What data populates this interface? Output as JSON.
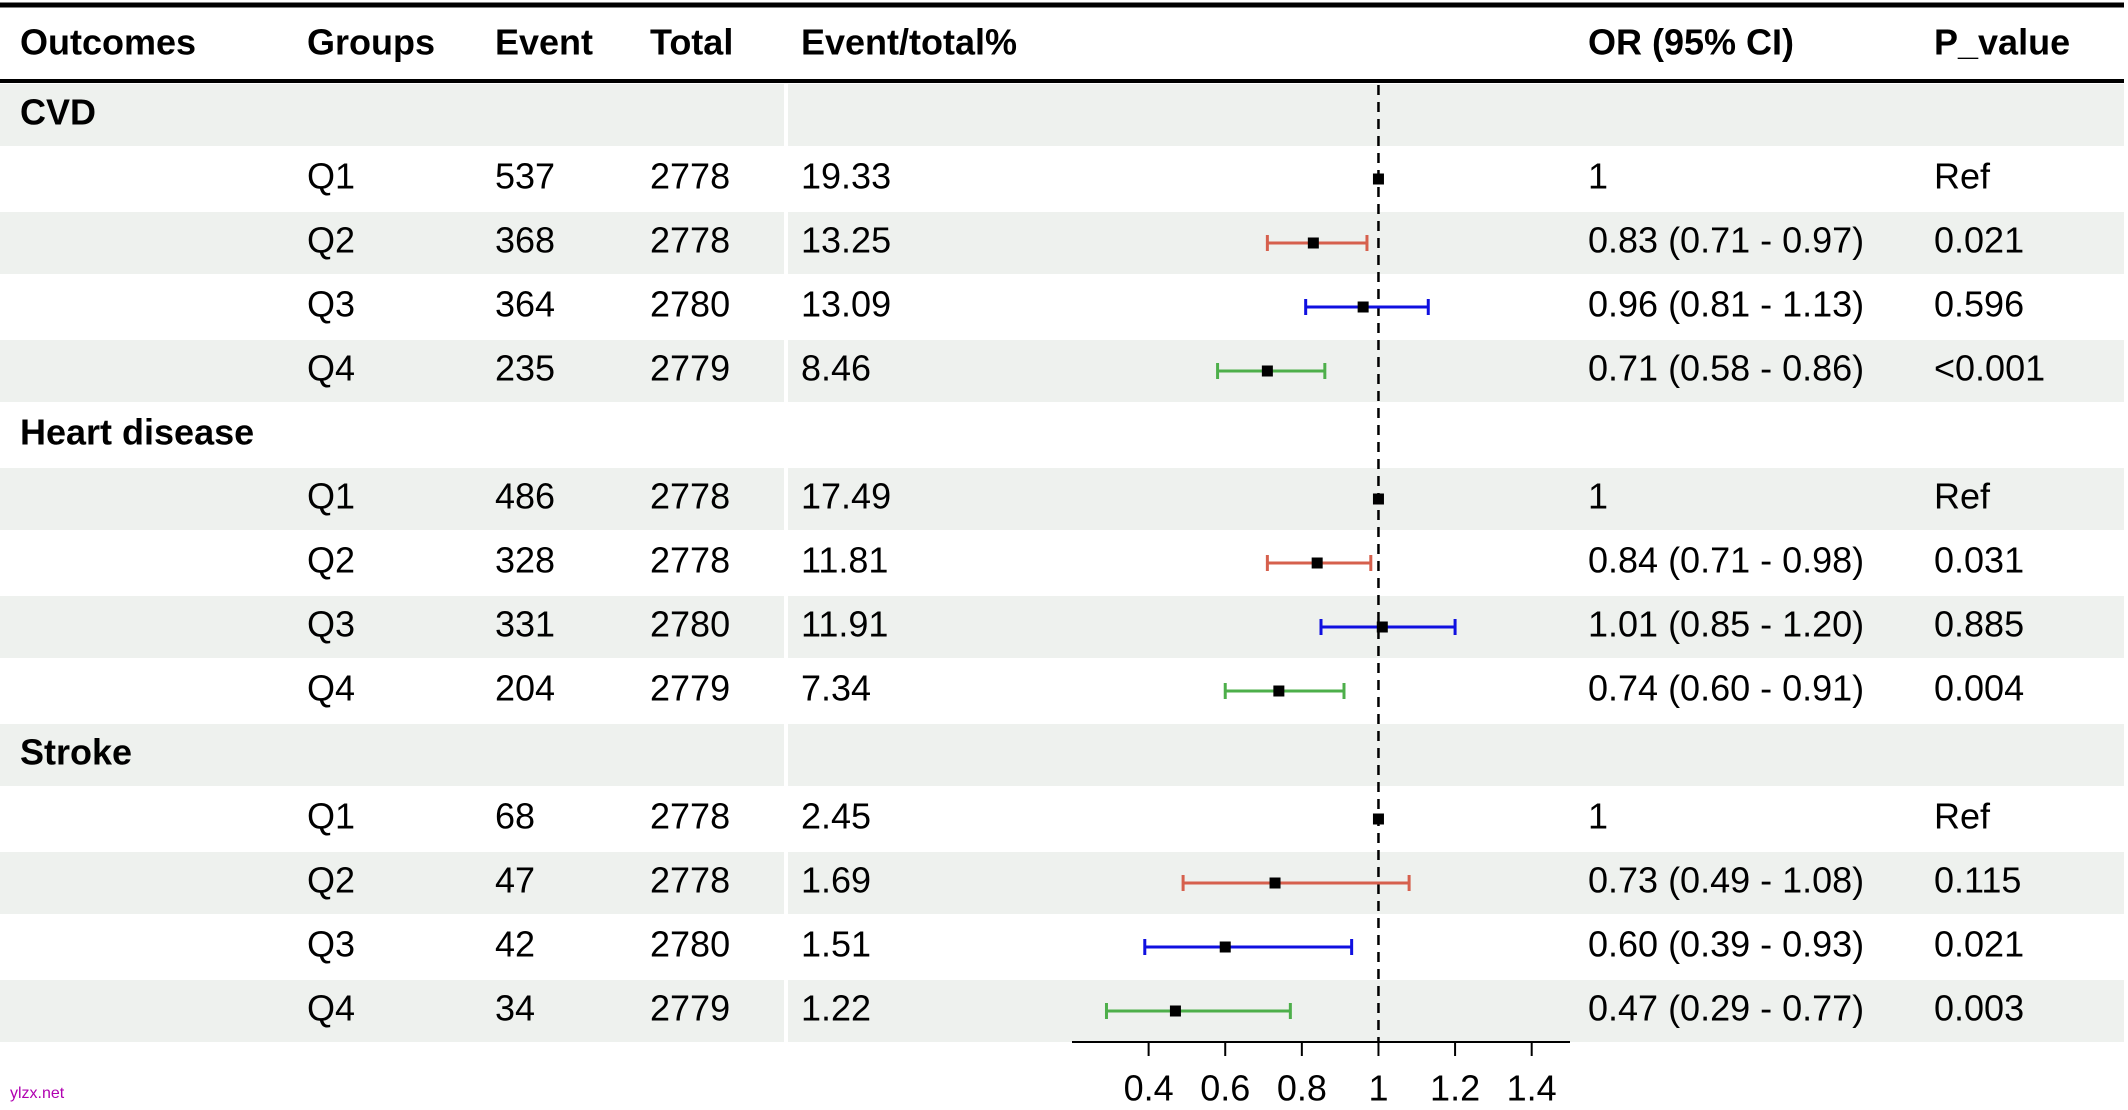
{
  "chart_data": {
    "type": "forest",
    "columns": [
      "Outcomes",
      "Groups",
      "Event",
      "Total",
      "Event/total%",
      "OR (95% CI)",
      "P_value"
    ],
    "sections": [
      {
        "name": "CVD",
        "rows": [
          {
            "group": "Q1",
            "event": 537,
            "total": 2778,
            "pct": 19.33,
            "or": 1,
            "or_label": "1",
            "p": "Ref",
            "color": "#000000"
          },
          {
            "group": "Q2",
            "event": 368,
            "total": 2778,
            "pct": 13.25,
            "or": 0.83,
            "lower": 0.71,
            "upper": 0.97,
            "or_label": "0.83 (0.71 - 0.97)",
            "p": "0.021",
            "color": "#d6604d"
          },
          {
            "group": "Q3",
            "event": 364,
            "total": 2780,
            "pct": 13.09,
            "or": 0.96,
            "lower": 0.81,
            "upper": 1.13,
            "or_label": "0.96 (0.81 - 1.13)",
            "p": "0.596",
            "color": "#1010e0"
          },
          {
            "group": "Q4",
            "event": 235,
            "total": 2779,
            "pct": 8.46,
            "or": 0.71,
            "lower": 0.58,
            "upper": 0.86,
            "or_label": "0.71 (0.58 - 0.86)",
            "p": "<0.001",
            "color": "#4daf4a"
          }
        ]
      },
      {
        "name": "Heart disease",
        "rows": [
          {
            "group": "Q1",
            "event": 486,
            "total": 2778,
            "pct": 17.49,
            "or": 1,
            "or_label": "1",
            "p": "Ref",
            "color": "#000000"
          },
          {
            "group": "Q2",
            "event": 328,
            "total": 2778,
            "pct": 11.81,
            "or": 0.84,
            "lower": 0.71,
            "upper": 0.98,
            "or_label": "0.84 (0.71 - 0.98)",
            "p": "0.031",
            "color": "#d6604d"
          },
          {
            "group": "Q3",
            "event": 331,
            "total": 2780,
            "pct": 11.91,
            "or": 1.01,
            "lower": 0.85,
            "upper": 1.2,
            "or_label": "1.01 (0.85 - 1.20)",
            "p": "0.885",
            "color": "#1010e0"
          },
          {
            "group": "Q4",
            "event": 204,
            "total": 2779,
            "pct": 7.34,
            "or": 0.74,
            "lower": 0.6,
            "upper": 0.91,
            "or_label": "0.74 (0.60 - 0.91)",
            "p": "0.004",
            "color": "#4daf4a"
          }
        ]
      },
      {
        "name": "Stroke",
        "rows": [
          {
            "group": "Q1",
            "event": 68,
            "total": 2778,
            "pct": 2.45,
            "or": 1,
            "or_label": "1",
            "p": "Ref",
            "color": "#000000"
          },
          {
            "group": "Q2",
            "event": 47,
            "total": 2778,
            "pct": 1.69,
            "or": 0.73,
            "lower": 0.49,
            "upper": 1.08,
            "or_label": "0.73 (0.49 - 1.08)",
            "p": "0.115",
            "color": "#d6604d"
          },
          {
            "group": "Q3",
            "event": 42,
            "total": 2780,
            "pct": 1.51,
            "or": 0.6,
            "lower": 0.39,
            "upper": 0.93,
            "or_label": "0.60 (0.39 - 0.93)",
            "p": "0.021",
            "color": "#1010e0"
          },
          {
            "group": "Q4",
            "event": 34,
            "total": 2779,
            "pct": 1.22,
            "or": 0.47,
            "lower": 0.29,
            "upper": 0.77,
            "or_label": "0.47 (0.29 - 0.77)",
            "p": "0.003",
            "color": "#4daf4a"
          }
        ]
      }
    ],
    "ref_line": 1,
    "xlim": [
      0.2,
      1.5
    ],
    "xticks": [
      0.4,
      0.6,
      0.8,
      1,
      1.2,
      1.4
    ],
    "watermark": "ylzx.net"
  }
}
